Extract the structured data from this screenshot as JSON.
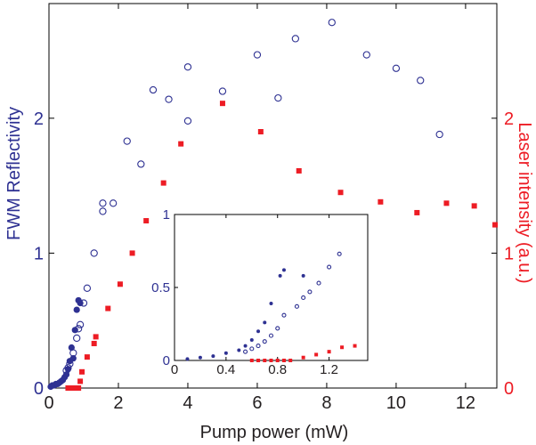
{
  "chart_data": [
    {
      "type": "scatter",
      "xlabel": "Pump power (mW)",
      "ylabel_left": "FWM Reflectivity",
      "ylabel_right": "Laser intensity (a.u.)",
      "xlim": [
        0,
        12.9
      ],
      "ylim_left": [
        0,
        2.85
      ],
      "ylim_right": [
        0,
        2.85
      ],
      "x_ticks": [
        "0",
        "2",
        "4",
        "6",
        "8",
        "10",
        "12"
      ],
      "y_left_ticks": [
        "0",
        "1",
        "2"
      ],
      "y_right_ticks": [
        "0",
        "1",
        "2"
      ],
      "colors": {
        "fwm": "#2e3192",
        "laser": "#ed1c24",
        "axis": "#000000"
      },
      "series": [
        {
          "name": "FWM Reflectivity",
          "axis": "left",
          "marker": "filled-circle",
          "color": "#2e3192",
          "points": [
            [
              0.05,
              0.01
            ],
            [
              0.1,
              0.02
            ],
            [
              0.15,
              0.02
            ],
            [
              0.2,
              0.03
            ],
            [
              0.25,
              0.03
            ],
            [
              0.3,
              0.04
            ],
            [
              0.35,
              0.05
            ],
            [
              0.4,
              0.06
            ],
            [
              0.45,
              0.08
            ],
            [
              0.5,
              0.1
            ],
            [
              0.55,
              0.14
            ],
            [
              0.6,
              0.2
            ],
            [
              0.65,
              0.3
            ],
            [
              0.7,
              0.22
            ],
            [
              0.75,
              0.43
            ],
            [
              0.8,
              0.58
            ],
            [
              0.85,
              0.65
            ],
            [
              0.9,
              0.63
            ]
          ]
        },
        {
          "name": "FWM Reflectivity (open)",
          "axis": "left",
          "marker": "open-circle",
          "color": "#2e3192",
          "points": [
            [
              0.5,
              0.13
            ],
            [
              0.55,
              0.15
            ],
            [
              0.6,
              0.18
            ],
            [
              0.7,
              0.26
            ],
            [
              0.8,
              0.37
            ],
            [
              0.85,
              0.44
            ],
            [
              0.9,
              0.47
            ],
            [
              1.0,
              0.63
            ],
            [
              1.1,
              0.74
            ],
            [
              1.3,
              1.0
            ],
            [
              1.55,
              1.31
            ],
            [
              1.55,
              1.37
            ],
            [
              1.85,
              1.37
            ],
            [
              2.25,
              1.83
            ],
            [
              2.65,
              1.66
            ],
            [
              3.0,
              2.21
            ],
            [
              3.45,
              2.14
            ],
            [
              4.0,
              2.38
            ],
            [
              4.0,
              1.98
            ],
            [
              5.0,
              2.2
            ],
            [
              6.0,
              2.47
            ],
            [
              6.6,
              2.15
            ],
            [
              7.1,
              2.59
            ],
            [
              8.15,
              2.71
            ],
            [
              9.15,
              2.47
            ],
            [
              10.0,
              2.37
            ],
            [
              10.7,
              2.28
            ],
            [
              11.25,
              1.88
            ]
          ]
        },
        {
          "name": "Laser intensity",
          "axis": "right",
          "marker": "filled-square",
          "color": "#ed1c24",
          "points": [
            [
              0.55,
              0.0
            ],
            [
              0.6,
              0.0
            ],
            [
              0.65,
              0.0
            ],
            [
              0.7,
              0.0
            ],
            [
              0.75,
              0.0
            ],
            [
              0.8,
              0.0
            ],
            [
              0.85,
              0.0
            ],
            [
              0.9,
              0.05
            ],
            [
              0.95,
              0.12
            ],
            [
              1.1,
              0.23
            ],
            [
              1.3,
              0.33
            ],
            [
              1.35,
              0.38
            ],
            [
              1.7,
              0.59
            ],
            [
              2.05,
              0.77
            ],
            [
              2.4,
              1.0
            ],
            [
              2.8,
              1.24
            ],
            [
              3.3,
              1.52
            ],
            [
              3.8,
              1.81
            ],
            [
              5.0,
              2.11
            ],
            [
              6.1,
              1.9
            ],
            [
              7.2,
              1.61
            ],
            [
              8.4,
              1.45
            ],
            [
              9.55,
              1.38
            ],
            [
              10.6,
              1.3
            ],
            [
              11.45,
              1.37
            ],
            [
              12.25,
              1.35
            ],
            [
              12.85,
              1.21
            ]
          ]
        }
      ]
    },
    {
      "type": "scatter",
      "role": "inset",
      "xlim": [
        0,
        1.5
      ],
      "ylim": [
        0,
        1
      ],
      "x_ticks": [
        "0",
        "0.4",
        "0.8",
        "1.2"
      ],
      "y_ticks": [
        "0",
        "0.5",
        "1"
      ],
      "series": [
        {
          "name": "FWM Reflectivity",
          "marker": "filled-circle",
          "color": "#2e3192",
          "points": [
            [
              0.1,
              0.01
            ],
            [
              0.2,
              0.02
            ],
            [
              0.3,
              0.03
            ],
            [
              0.4,
              0.05
            ],
            [
              0.5,
              0.07
            ],
            [
              0.55,
              0.1
            ],
            [
              0.6,
              0.14
            ],
            [
              0.65,
              0.2
            ],
            [
              0.7,
              0.26
            ],
            [
              0.75,
              0.39
            ],
            [
              0.82,
              0.58
            ],
            [
              0.85,
              0.62
            ],
            [
              1.0,
              0.58
            ]
          ]
        },
        {
          "name": "FWM Reflectivity (open)",
          "marker": "open-circle",
          "color": "#2e3192",
          "points": [
            [
              0.55,
              0.06
            ],
            [
              0.6,
              0.08
            ],
            [
              0.65,
              0.1
            ],
            [
              0.7,
              0.13
            ],
            [
              0.75,
              0.17
            ],
            [
              0.8,
              0.22
            ],
            [
              0.85,
              0.31
            ],
            [
              0.95,
              0.37
            ],
            [
              1.0,
              0.43
            ],
            [
              1.05,
              0.47
            ],
            [
              1.12,
              0.53
            ],
            [
              1.2,
              0.64
            ],
            [
              1.28,
              0.73
            ]
          ]
        },
        {
          "name": "Laser intensity",
          "marker": "filled-square",
          "color": "#ed1c24",
          "points": [
            [
              0.6,
              0.0
            ],
            [
              0.65,
              0.0
            ],
            [
              0.7,
              0.0
            ],
            [
              0.75,
              0.0
            ],
            [
              0.8,
              0.0
            ],
            [
              0.85,
              0.0
            ],
            [
              0.9,
              0.0
            ],
            [
              1.0,
              0.02
            ],
            [
              1.1,
              0.04
            ],
            [
              1.2,
              0.06
            ],
            [
              1.3,
              0.09
            ],
            [
              1.4,
              0.1
            ]
          ]
        }
      ]
    }
  ]
}
